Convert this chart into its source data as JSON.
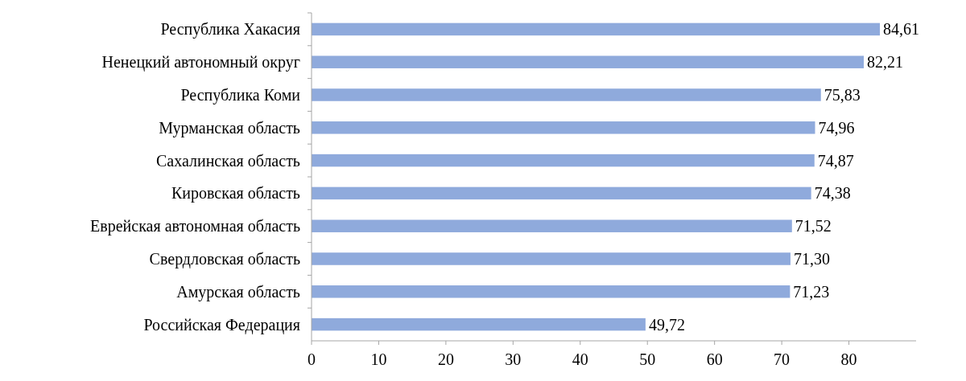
{
  "chart_data": {
    "type": "bar",
    "orientation": "horizontal",
    "categories": [
      "Республика Хакасия",
      "Ненецкий автономный округ",
      "Республика Коми",
      "Мурманская область",
      "Сахалинская область",
      "Кировская область",
      "Еврейская автономная область",
      "Свердловская область",
      "Амурская область",
      "Российская Федерация"
    ],
    "values": [
      84.61,
      82.21,
      75.83,
      74.96,
      74.87,
      74.38,
      71.52,
      71.3,
      71.23,
      49.72
    ],
    "value_labels": [
      "84,61",
      "82,21",
      "75,83",
      "74,96",
      "74,87",
      "74,38",
      "71,52",
      "71,30",
      "71,23",
      "49,72"
    ],
    "color": "#8faadc",
    "xlim": [
      0,
      90
    ],
    "xticks": [
      0,
      10,
      20,
      30,
      40,
      50,
      60,
      70,
      80
    ],
    "grid": false
  }
}
